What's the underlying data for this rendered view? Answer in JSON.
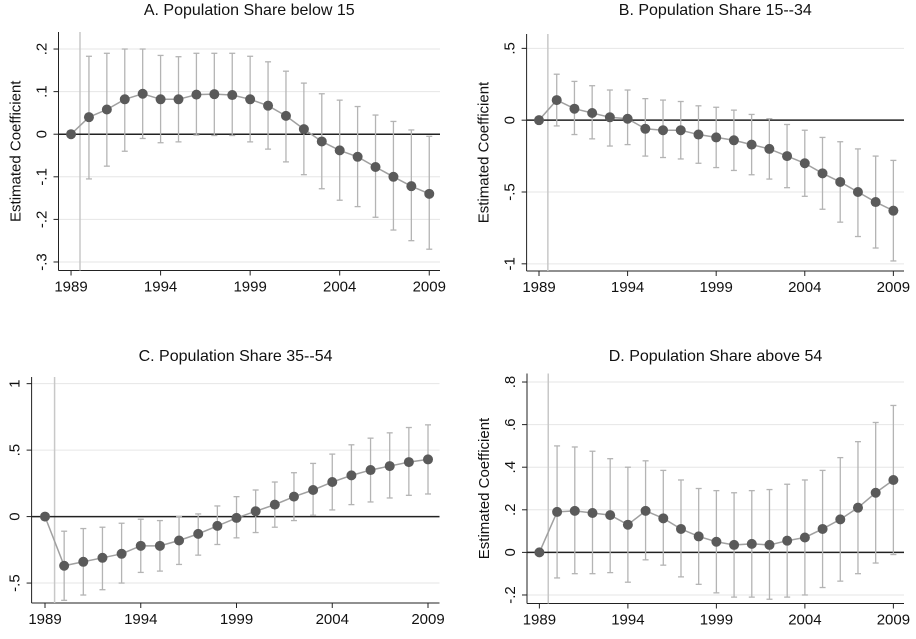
{
  "chart_data": [
    {
      "type": "line",
      "title": "A. Population Share below 15",
      "ylabel": "Estimated Coefficient",
      "x": [
        1989,
        1990,
        1991,
        1992,
        1993,
        1994,
        1995,
        1996,
        1997,
        1998,
        1999,
        2000,
        2001,
        2002,
        2003,
        2004,
        2005,
        2006,
        2007,
        2008,
        2009
      ],
      "values": [
        0,
        0.04,
        0.058,
        0.082,
        0.095,
        0.082,
        0.082,
        0.093,
        0.094,
        0.092,
        0.082,
        0.067,
        0.043,
        0.012,
        -0.017,
        -0.038,
        -0.053,
        -0.077,
        -0.1,
        -0.122,
        -0.14
      ],
      "ci_high": [
        null,
        0.183,
        0.19,
        0.2,
        0.2,
        0.185,
        0.182,
        0.19,
        0.19,
        0.19,
        0.183,
        0.17,
        0.148,
        0.12,
        0.095,
        0.08,
        0.065,
        0.045,
        0.03,
        0.01,
        -0.005
      ],
      "ci_low": [
        null,
        -0.105,
        -0.075,
        -0.04,
        -0.01,
        -0.02,
        -0.018,
        -0.002,
        -0.003,
        -0.003,
        -0.018,
        -0.035,
        -0.065,
        -0.095,
        -0.128,
        -0.155,
        -0.17,
        -0.195,
        -0.225,
        -0.25,
        -0.27
      ],
      "xlim": [
        1988.3,
        2009.6
      ],
      "xticks": [
        1989,
        1994,
        1999,
        2004,
        2009
      ],
      "ylim": [
        -0.32,
        0.24
      ],
      "yticks": [
        {
          "value": -0.3,
          "label": "-.3"
        },
        {
          "value": -0.2,
          "label": "-.2"
        },
        {
          "value": -0.1,
          "label": "-.1"
        },
        0,
        {
          "value": 0.1,
          "label": ".1"
        },
        {
          "value": 0.2,
          "label": ".2"
        }
      ],
      "grid": true,
      "hline": 0,
      "vline": 1989.5,
      "color": "#5a5a5a",
      "line_color": "#a0a0a0",
      "ci_color": "#b4b4b4"
    },
    {
      "type": "line",
      "title": "B. Population Share 15--34",
      "ylabel": "Estimated Coefficient",
      "x": [
        1989,
        1990,
        1991,
        1992,
        1993,
        1994,
        1995,
        1996,
        1997,
        1998,
        1999,
        2000,
        2001,
        2002,
        2003,
        2004,
        2005,
        2006,
        2007,
        2008,
        2009
      ],
      "values": [
        0,
        0.14,
        0.08,
        0.05,
        0.02,
        0.01,
        -0.06,
        -0.07,
        -0.07,
        -0.1,
        -0.12,
        -0.14,
        -0.17,
        -0.2,
        -0.25,
        -0.3,
        -0.37,
        -0.43,
        -0.5,
        -0.57,
        -0.63
      ],
      "ci_high": [
        null,
        0.32,
        0.27,
        0.24,
        0.21,
        0.21,
        0.15,
        0.14,
        0.13,
        0.1,
        0.09,
        0.07,
        0.04,
        0.01,
        -0.03,
        -0.07,
        -0.12,
        -0.15,
        -0.2,
        -0.25,
        -0.28
      ],
      "ci_low": [
        null,
        -0.04,
        -0.1,
        -0.13,
        -0.18,
        -0.17,
        -0.25,
        -0.26,
        -0.27,
        -0.3,
        -0.33,
        -0.35,
        -0.38,
        -0.41,
        -0.47,
        -0.53,
        -0.62,
        -0.71,
        -0.81,
        -0.89,
        -0.98
      ],
      "xlim": [
        1988.3,
        2009.6
      ],
      "xticks": [
        1989,
        1994,
        1999,
        2004,
        2009
      ],
      "ylim": [
        -1.05,
        0.6
      ],
      "yticks": [
        -1,
        {
          "value": -0.5,
          "label": "-.5"
        },
        0,
        {
          "value": 0.5,
          "label": ".5"
        }
      ],
      "grid": true,
      "hline": 0,
      "vline": 1989.5,
      "color": "#5a5a5a",
      "line_color": "#a0a0a0",
      "ci_color": "#b4b4b4"
    },
    {
      "type": "line",
      "title": "C. Population Share 35--54",
      "ylabel": "Estimated Coefficient",
      "x": [
        1989,
        1990,
        1991,
        1992,
        1993,
        1994,
        1995,
        1996,
        1997,
        1998,
        1999,
        2000,
        2001,
        2002,
        2003,
        2004,
        2005,
        2006,
        2007,
        2008,
        2009
      ],
      "values": [
        0,
        -0.37,
        -0.34,
        -0.31,
        -0.28,
        -0.22,
        -0.22,
        -0.18,
        -0.13,
        -0.07,
        -0.01,
        0.04,
        0.09,
        0.15,
        0.2,
        0.26,
        0.31,
        0.35,
        0.38,
        0.41,
        0.43
      ],
      "ci_high": [
        null,
        -0.11,
        -0.09,
        -0.08,
        -0.05,
        -0.02,
        -0.03,
        0,
        0.02,
        0.08,
        0.15,
        0.2,
        0.26,
        0.33,
        0.4,
        0.47,
        0.54,
        0.59,
        0.63,
        0.67,
        0.69
      ],
      "ci_low": [
        null,
        -0.63,
        -0.59,
        -0.55,
        -0.5,
        -0.42,
        -0.41,
        -0.36,
        -0.29,
        -0.21,
        -0.16,
        -0.12,
        -0.08,
        -0.03,
        0.01,
        0.05,
        0.09,
        0.11,
        0.14,
        0.16,
        0.17
      ],
      "xlim": [
        1988.3,
        2009.6
      ],
      "xticks": [
        1989,
        1994,
        1999,
        2004,
        2009
      ],
      "ylim": [
        -0.65,
        1.05
      ],
      "yticks": [
        {
          "value": -0.5,
          "label": "-.5"
        },
        0,
        {
          "value": 0.5,
          "label": ".5"
        },
        1
      ],
      "grid": true,
      "hline": 0,
      "vline": 1989.5,
      "color": "#5a5a5a",
      "line_color": "#a0a0a0",
      "ci_color": "#b4b4b4"
    },
    {
      "type": "line",
      "title": "D. Population Share above 54",
      "ylabel": "Estimated Coefficient",
      "x": [
        1989,
        1990,
        1991,
        1992,
        1993,
        1994,
        1995,
        1996,
        1997,
        1998,
        1999,
        2000,
        2001,
        2002,
        2003,
        2004,
        2005,
        2006,
        2007,
        2008,
        2009
      ],
      "values": [
        0,
        0.19,
        0.195,
        0.185,
        0.175,
        0.13,
        0.195,
        0.16,
        0.11,
        0.075,
        0.05,
        0.035,
        0.04,
        0.035,
        0.055,
        0.07,
        0.11,
        0.155,
        0.21,
        0.28,
        0.34
      ],
      "ci_high": [
        null,
        0.5,
        0.495,
        0.475,
        0.44,
        0.4,
        0.43,
        0.385,
        0.34,
        0.3,
        0.29,
        0.28,
        0.29,
        0.295,
        0.32,
        0.34,
        0.385,
        0.445,
        0.52,
        0.61,
        0.69
      ],
      "ci_low": [
        null,
        -0.12,
        -0.1,
        -0.1,
        -0.095,
        -0.14,
        -0.035,
        -0.06,
        -0.115,
        -0.15,
        -0.19,
        -0.21,
        -0.21,
        -0.22,
        -0.21,
        -0.2,
        -0.165,
        -0.135,
        -0.1,
        -0.05,
        -0.01
      ],
      "xlim": [
        1988.3,
        2009.6
      ],
      "xticks": [
        1989,
        1994,
        1999,
        2004,
        2009
      ],
      "ylim": [
        -0.24,
        0.84
      ],
      "yticks": [
        {
          "value": -0.2,
          "label": "-.2"
        },
        0,
        {
          "value": 0.2,
          "label": ".2"
        },
        {
          "value": 0.4,
          "label": ".4"
        },
        {
          "value": 0.6,
          "label": ".6"
        },
        {
          "value": 0.8,
          "label": ".8"
        }
      ],
      "grid": true,
      "hline": 0,
      "vline": 1989.5,
      "color": "#5a5a5a",
      "line_color": "#a0a0a0",
      "ci_color": "#b4b4b4"
    }
  ]
}
